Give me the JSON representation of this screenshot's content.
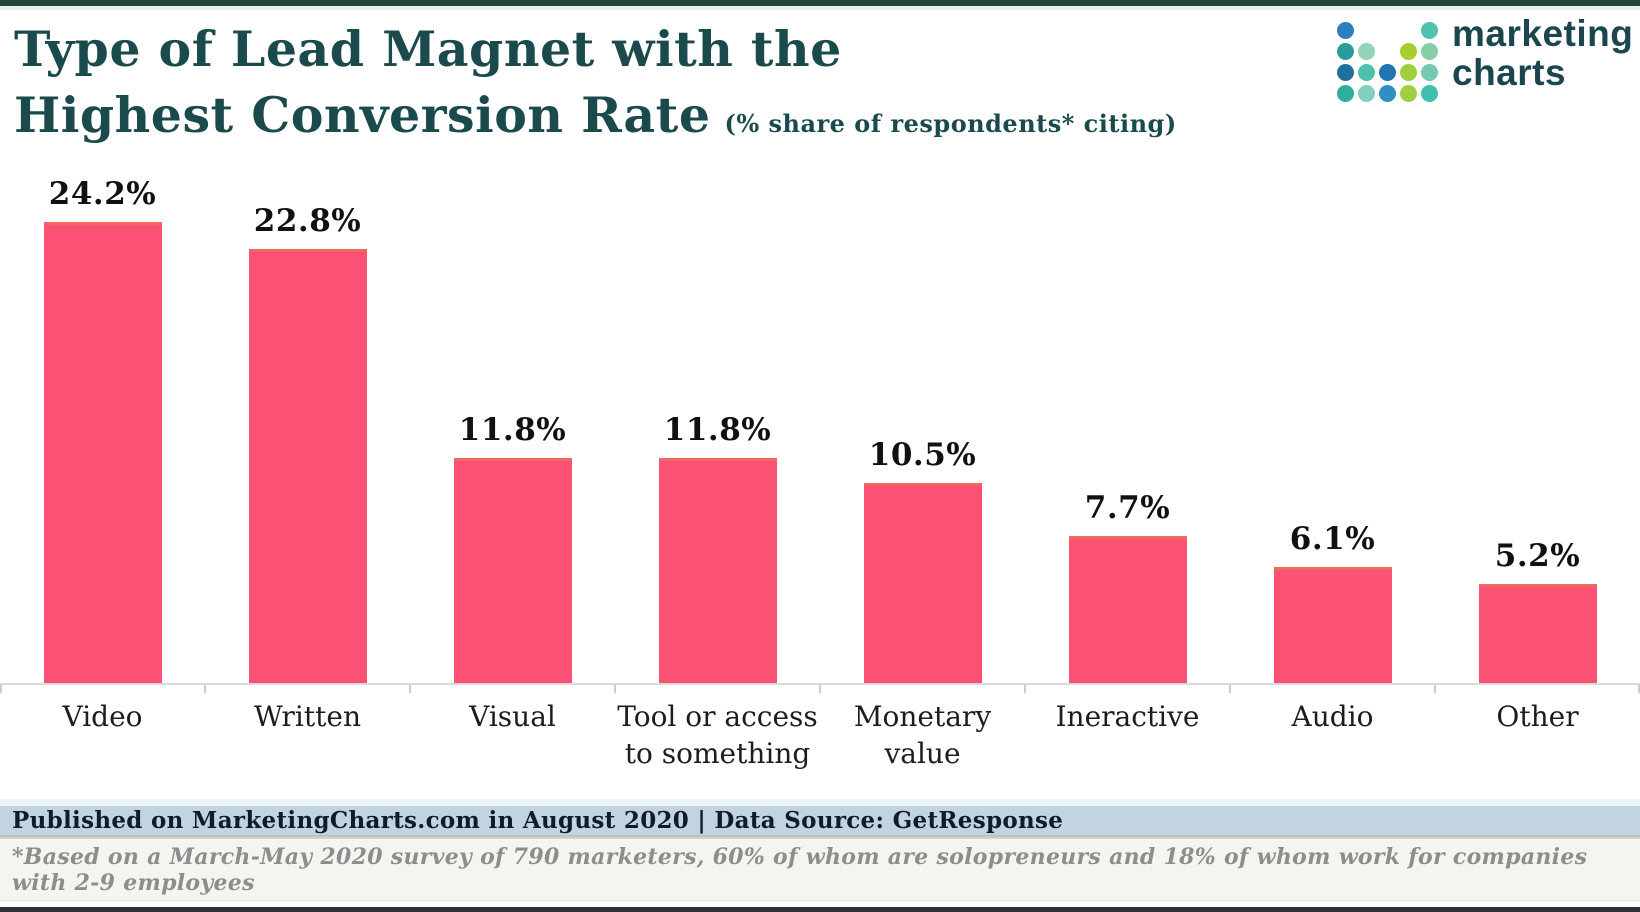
{
  "header": {
    "title_line1": "Type of Lead Magnet with the",
    "title_line2": "Highest Conversion Rate",
    "subtitle": "(% share of respondents*  citing)"
  },
  "logo": {
    "name_line1": "marketing",
    "name_line2": "charts",
    "dot_grid": [
      [
        "#2e7fbe",
        null,
        null,
        null,
        "#4fc2b0"
      ],
      [
        "#2a9c9f",
        "#90d6b6",
        null,
        "#a6cf2e",
        "#86cfa6"
      ],
      [
        "#20709e",
        "#4fbfae",
        "#1e75b0",
        "#9fce3e",
        "#77c8b0"
      ],
      [
        "#2fae9e",
        "#82cfc0",
        "#2f8fbe",
        "#9fce3e",
        "#3fbfae"
      ]
    ]
  },
  "chart_data": {
    "type": "bar",
    "title": "Type of Lead Magnet with the Highest Conversion Rate",
    "subtitle": "(% share of respondents* citing)",
    "categories": [
      "Video",
      "Written",
      "Visual",
      "Tool or access to something",
      "Monetary value",
      "Ineractive",
      "Audio",
      "Other"
    ],
    "values": [
      24.2,
      22.8,
      11.8,
      11.8,
      10.5,
      7.7,
      6.1,
      5.2
    ],
    "value_label_suffix": "%",
    "bar_color": "#fb5175",
    "bar_top_edge_color": "#ef6a5e",
    "xlabel": "",
    "ylabel": "",
    "ylim": [
      0,
      28
    ],
    "grid": false,
    "legend": false,
    "axis_line_color": "#dadada"
  },
  "footer": {
    "published_line": "Published on MarketingCharts.com in August 2020 | Data Source: GetResponse",
    "footnote": "*Based on a March-May 2020 survey of 790 marketers, 60% of whom are solopreneurs and 18% of whom work for companies with 2-9 employees"
  },
  "colors": {
    "title": "#1a4a4c",
    "top_border": "#24473a",
    "bottom_border": "#2e3236",
    "published_band": "#c3d4e1",
    "footnote_band": "#f4f4f1",
    "value_label": "#111111"
  }
}
